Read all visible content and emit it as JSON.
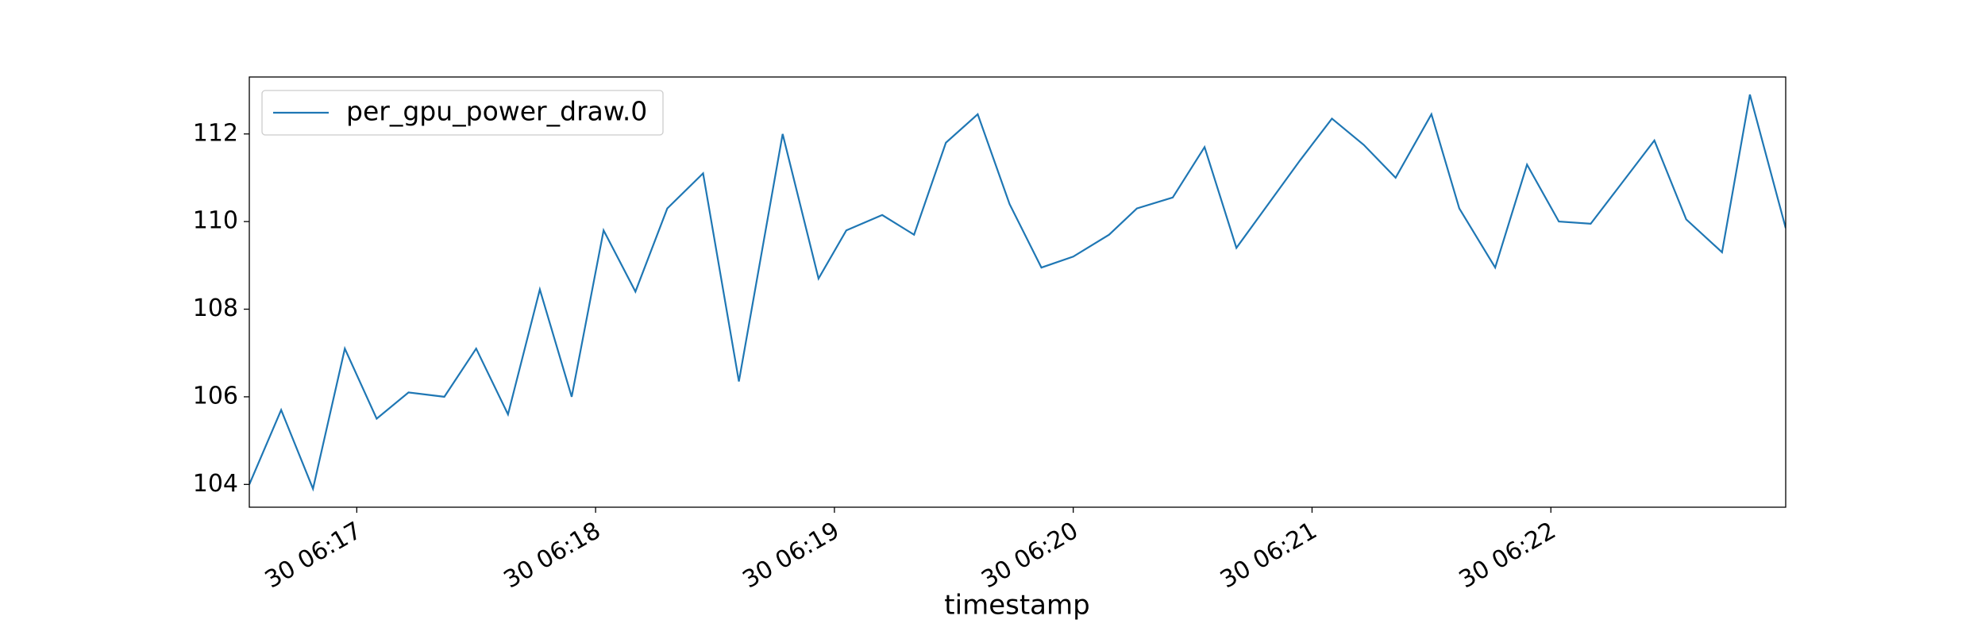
{
  "chart_data": {
    "type": "line",
    "xlabel": "timestamp",
    "x": [
      "06:16:33",
      "06:16:41",
      "06:16:49",
      "06:16:57",
      "06:17:05",
      "06:17:13",
      "06:17:22",
      "06:17:30",
      "06:17:38",
      "06:17:46",
      "06:17:54",
      "06:18:02",
      "06:18:10",
      "06:18:18",
      "06:18:27",
      "06:18:36",
      "06:18:47",
      "06:18:56",
      "06:19:03",
      "06:19:12",
      "06:19:20",
      "06:19:28",
      "06:19:36",
      "06:19:44",
      "06:19:52",
      "06:20:00",
      "06:20:09",
      "06:20:16",
      "06:20:25",
      "06:20:33",
      "06:20:41",
      "06:20:49",
      "06:20:57",
      "06:21:05",
      "06:21:13",
      "06:21:21",
      "06:21:30",
      "06:21:37",
      "06:21:46",
      "06:21:54",
      "06:22:02",
      "06:22:10",
      "06:22:18",
      "06:22:26",
      "06:22:34",
      "06:22:43",
      "06:22:50",
      "06:22:59"
    ],
    "series": [
      {
        "name": "per_gpu_power_draw.0",
        "color": "#1f77b4",
        "values": [
          104.0,
          105.7,
          103.9,
          107.1,
          105.5,
          106.1,
          106.0,
          107.1,
          105.6,
          108.45,
          106.0,
          109.8,
          108.4,
          110.3,
          111.1,
          106.35,
          112.0,
          108.7,
          109.8,
          110.15,
          109.7,
          111.8,
          112.45,
          110.4,
          108.95,
          109.2,
          109.7,
          110.3,
          110.55,
          111.7,
          109.4,
          110.4,
          111.4,
          112.35,
          111.75,
          111.0,
          112.45,
          110.3,
          108.95,
          111.3,
          110.0,
          109.95,
          110.9,
          111.85,
          110.05,
          109.3,
          112.9,
          109.85
        ]
      }
    ],
    "xlim": [
      "06:16:33",
      "06:22:59"
    ],
    "xticks": [
      {
        "value": "06:17:00",
        "label": "30 06:17"
      },
      {
        "value": "06:18:00",
        "label": "30 06:18"
      },
      {
        "value": "06:19:00",
        "label": "30 06:19"
      },
      {
        "value": "06:20:00",
        "label": "30 06:20"
      },
      {
        "value": "06:21:00",
        "label": "30 06:21"
      },
      {
        "value": "06:22:00",
        "label": "30 06:22"
      }
    ],
    "ylim": [
      103.48,
      113.3
    ],
    "yticks": [
      104,
      106,
      108,
      110,
      112
    ],
    "grid": false,
    "legend": "upper left"
  }
}
